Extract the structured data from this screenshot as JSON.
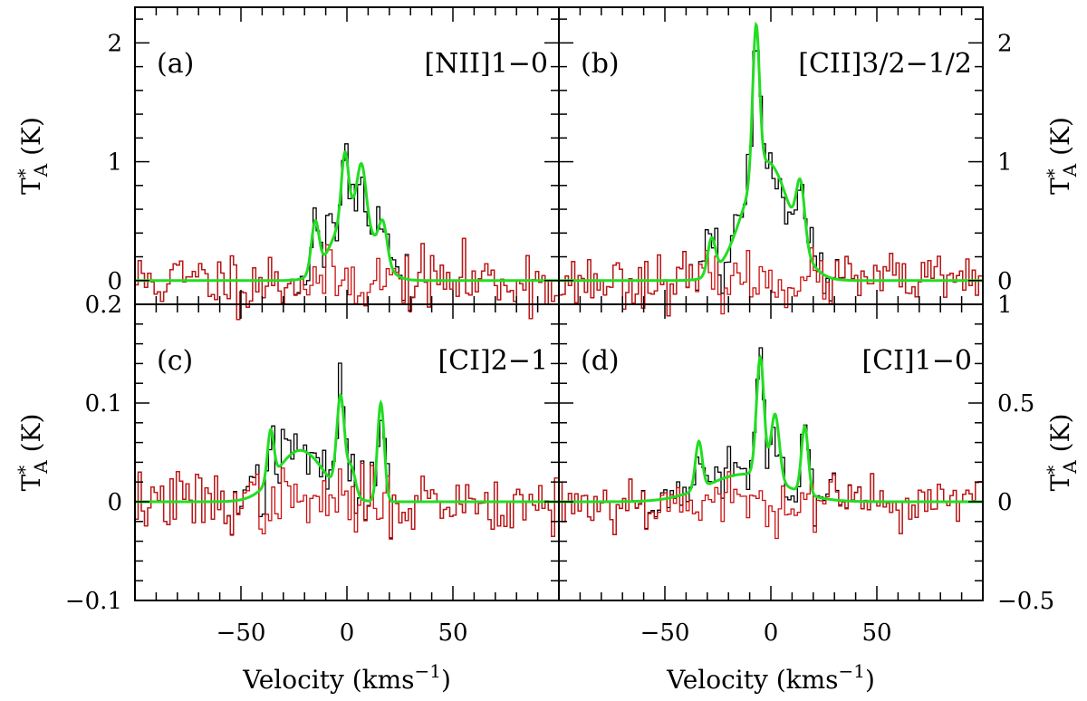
{
  "chart_data": [
    {
      "type": "line",
      "panel_label": "(a)",
      "line_label": "[NII]1−0",
      "xlim": [
        -100,
        100
      ],
      "ylim": [
        -0.2,
        2.3
      ],
      "x_ticks": [
        -50,
        0,
        50
      ],
      "x_tick_labels": [
        "",
        "",
        ""
      ],
      "y_ticks": [
        0,
        1,
        2
      ],
      "y_tick_labels": [
        "0",
        "1",
        "2"
      ],
      "ylabel": "T_A^* (K)",
      "ylabel_side": "left",
      "fit_components": [
        {
          "center": -15,
          "amp": 0.42,
          "sigma": 1.8
        },
        {
          "center": -1,
          "amp": 0.52,
          "sigma": 1.6
        },
        {
          "center": 7,
          "amp": 0.42,
          "sigma": 2.0
        },
        {
          "center": 17,
          "amp": 0.32,
          "sigma": 2.0
        },
        {
          "center": 3,
          "amp": 0.62,
          "sigma": 9
        }
      ],
      "noise_rms": 0.13,
      "noise_seed": 11
    },
    {
      "type": "line",
      "panel_label": "(b)",
      "line_label": "[CII]3/2−1/2",
      "xlim": [
        -100,
        100
      ],
      "ylim": [
        -0.2,
        2.3
      ],
      "x_ticks": [
        -50,
        0,
        50
      ],
      "x_tick_labels": [
        "",
        "",
        ""
      ],
      "y_ticks": [
        0,
        1,
        2
      ],
      "y_tick_labels": [
        "0",
        "1",
        "2"
      ],
      "ylabel": "T_A^* (K)",
      "ylabel_side": "right",
      "fit_components": [
        {
          "center": -28,
          "amp": 0.3,
          "sigma": 1.8
        },
        {
          "center": -7,
          "amp": 1.25,
          "sigma": 1.6
        },
        {
          "center": 14,
          "amp": 0.5,
          "sigma": 2.0
        },
        {
          "center": -2,
          "amp": 1.0,
          "sigma": 11
        }
      ],
      "noise_rms": 0.11,
      "noise_seed": 23
    },
    {
      "type": "line",
      "panel_label": "(c)",
      "line_label": "[CI]2−1",
      "xlim": [
        -100,
        100
      ],
      "ylim": [
        -0.1,
        0.2
      ],
      "x_ticks": [
        -50,
        0,
        50
      ],
      "x_tick_labels": [
        "−50",
        "0",
        "50"
      ],
      "y_ticks": [
        -0.1,
        0,
        0.1,
        0.2
      ],
      "y_tick_labels": [
        "−0.1",
        "0",
        "0.1",
        "0.2"
      ],
      "ylabel": "T_A^* (K)",
      "ylabel_side": "left",
      "xlabel": "Velocity (kms^-1)",
      "fit_components": [
        {
          "center": -36,
          "amp": 0.05,
          "sigma": 1.5
        },
        {
          "center": -3,
          "amp": 0.095,
          "sigma": 1.8
        },
        {
          "center": 2,
          "amp": 0.03,
          "sigma": 2.0
        },
        {
          "center": 16,
          "amp": 0.1,
          "sigma": 1.6
        },
        {
          "center": -22,
          "amp": 0.052,
          "sigma": 11
        }
      ],
      "noise_rms": 0.016,
      "noise_seed": 37
    },
    {
      "type": "line",
      "panel_label": "(d)",
      "line_label": "[CI]1−0",
      "xlim": [
        -100,
        100
      ],
      "ylim": [
        -0.5,
        1.0
      ],
      "x_ticks": [
        -50,
        0,
        50
      ],
      "x_tick_labels": [
        "−50",
        "0",
        "50"
      ],
      "y_ticks": [
        -0.5,
        0,
        0.5,
        1.0
      ],
      "y_tick_labels": [
        "−0.5",
        "0",
        "0.5",
        "1"
      ],
      "ylabel": "T_A^* (K)",
      "ylabel_side": "right",
      "xlabel": "Velocity (kms^-1)",
      "fit_components": [
        {
          "center": -34,
          "amp": 0.24,
          "sigma": 1.6
        },
        {
          "center": -5,
          "amp": 0.6,
          "sigma": 1.8
        },
        {
          "center": 2,
          "amp": 0.34,
          "sigma": 2.0
        },
        {
          "center": 16,
          "amp": 0.34,
          "sigma": 1.6
        },
        {
          "center": -12,
          "amp": 0.14,
          "sigma": 18
        }
      ],
      "noise_rms": 0.07,
      "noise_seed": 53
    }
  ],
  "colors": {
    "observed": "#000000",
    "residual": "#cc1111",
    "fit": "#22dd22",
    "frame": "#000000"
  }
}
